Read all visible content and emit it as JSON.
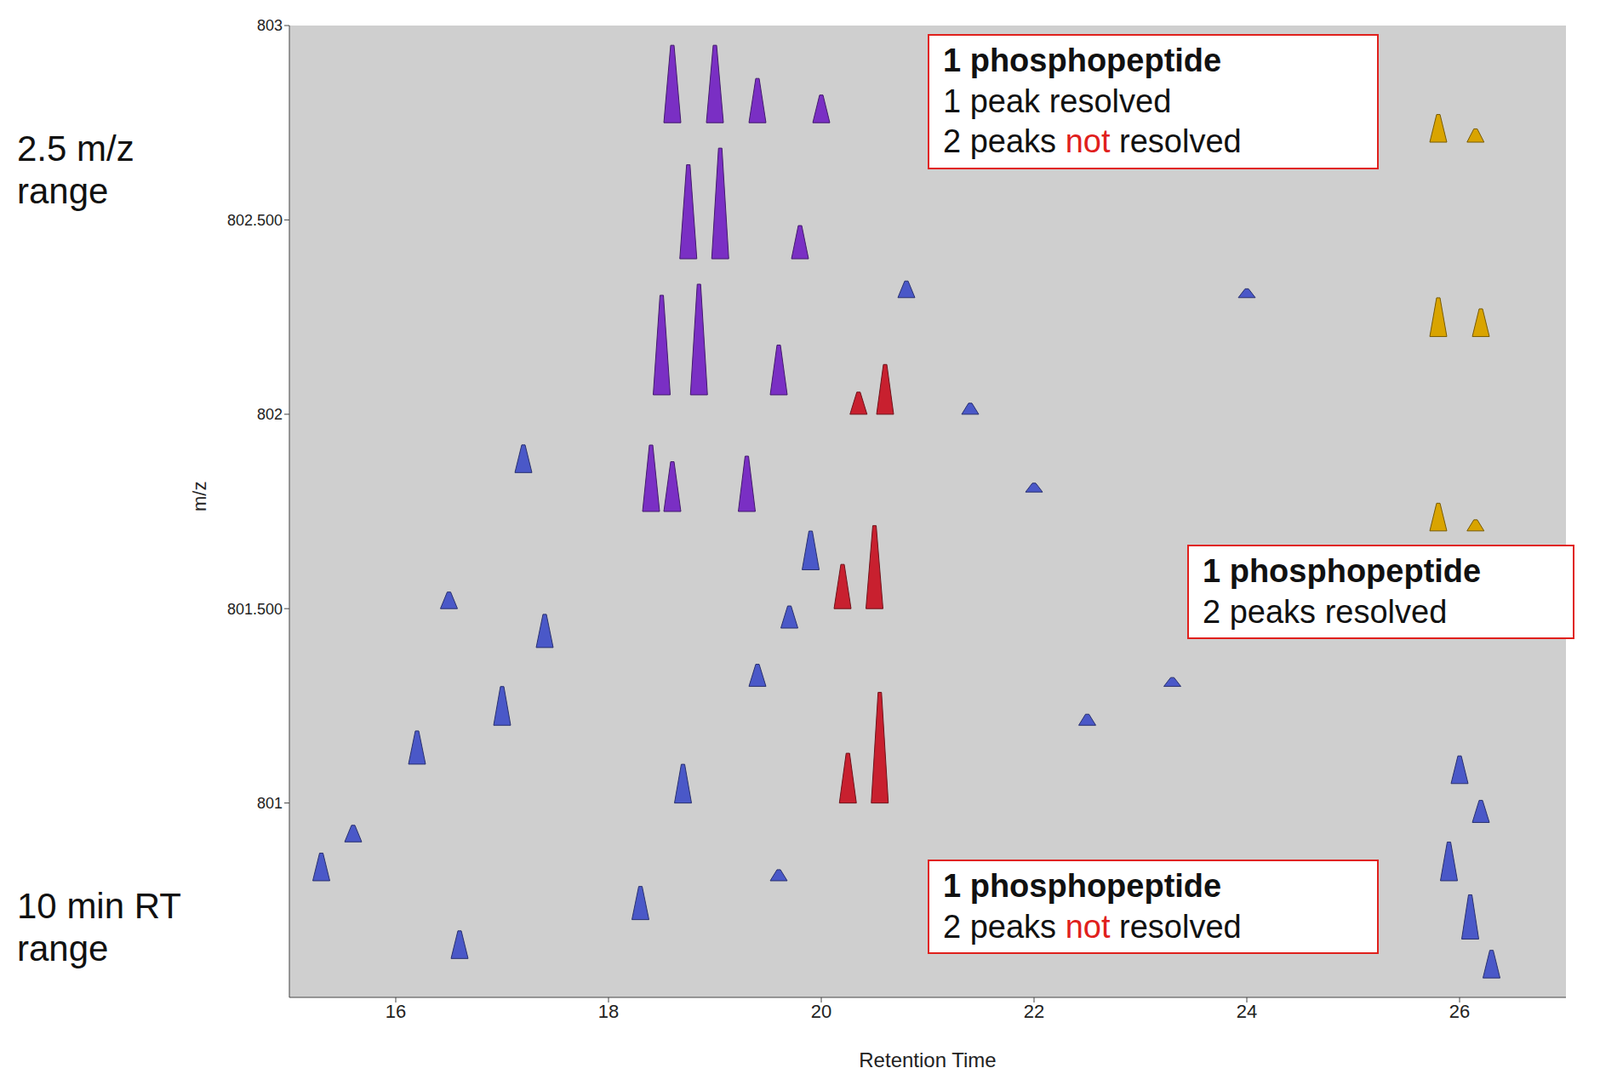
{
  "chart_data": {
    "type": "scatter",
    "x_label": "Retention Time",
    "y_label": "m/z",
    "xlim": [
      15,
      27
    ],
    "xticks": [
      16,
      18,
      20,
      22,
      24,
      26
    ],
    "ylim": [
      800.5,
      803
    ],
    "yticks": [
      {
        "value": 801,
        "label": "801"
      },
      {
        "value": 801.5,
        "label": "801.500"
      },
      {
        "value": 802,
        "label": "802"
      },
      {
        "value": 802.5,
        "label": "802.500"
      },
      {
        "value": 803,
        "label": "803"
      }
    ],
    "grid": false,
    "marker": "peak",
    "side_labels": [
      "2.5 m/z range",
      "10 min RT range"
    ],
    "annotations": [
      {
        "title": "1 phosphopeptide",
        "lines": [
          "1 peak resolved",
          "2 peaks not resolved"
        ],
        "highlight": "not"
      },
      {
        "title": "1 phosphopeptide",
        "lines": [
          "2 peaks not resolved"
        ],
        "highlight": "not"
      },
      {
        "title": "1 phosphopeptide",
        "lines": [
          "2 peaks resolved"
        ],
        "highlight": "not"
      }
    ],
    "series": [
      {
        "color": "#7a2fc4",
        "x": [
          18.6,
          19.0,
          19.4,
          20.0,
          18.75,
          19.05,
          19.8,
          18.5,
          18.85,
          19.6,
          18.4,
          18.6,
          19.3
        ],
        "y": [
          802.75,
          802.75,
          802.75,
          802.75,
          802.4,
          802.4,
          802.4,
          802.05,
          802.05,
          802.05,
          801.75,
          801.75,
          801.75
        ],
        "intensity": [
          70,
          70,
          40,
          25,
          85,
          100,
          30,
          90,
          100,
          45,
          60,
          45,
          50
        ]
      },
      {
        "color": "#c8202f",
        "x": [
          20.25,
          20.55,
          20.2,
          20.5,
          20.35,
          20.6
        ],
        "y": [
          801.0,
          801.0,
          801.5,
          801.5,
          802.0,
          802.0
        ],
        "intensity": [
          45,
          100,
          40,
          75,
          20,
          45
        ]
      },
      {
        "color": "#d9a400",
        "x": [
          25.8,
          26.15,
          25.8,
          26.2,
          25.8,
          26.15
        ],
        "y": [
          802.7,
          802.7,
          802.2,
          802.2,
          801.7,
          801.7
        ],
        "intensity": [
          25,
          12,
          35,
          25,
          25,
          10
        ]
      },
      {
        "color": "#4a58c8",
        "x": [
          15.3,
          15.6,
          16.2,
          16.6,
          17.0,
          17.4,
          18.3,
          18.7,
          19.4,
          19.6,
          17.2,
          16.5,
          19.7,
          19.9,
          20.8,
          21.4,
          22.0,
          22.5,
          23.3,
          24.0,
          26.0,
          26.2,
          25.9,
          26.1,
          26.3
        ],
        "y": [
          800.8,
          800.9,
          801.1,
          800.6,
          801.2,
          801.4,
          800.7,
          801.0,
          801.3,
          800.8,
          801.85,
          801.5,
          801.45,
          801.6,
          802.3,
          802.0,
          801.8,
          801.2,
          801.3,
          802.3,
          801.05,
          800.95,
          800.8,
          800.65,
          800.55
        ],
        "intensity": [
          25,
          15,
          30,
          25,
          35,
          30,
          30,
          35,
          20,
          10,
          25,
          15,
          20,
          35,
          15,
          10,
          8,
          10,
          8,
          8,
          25,
          20,
          35,
          40,
          25
        ]
      }
    ]
  }
}
